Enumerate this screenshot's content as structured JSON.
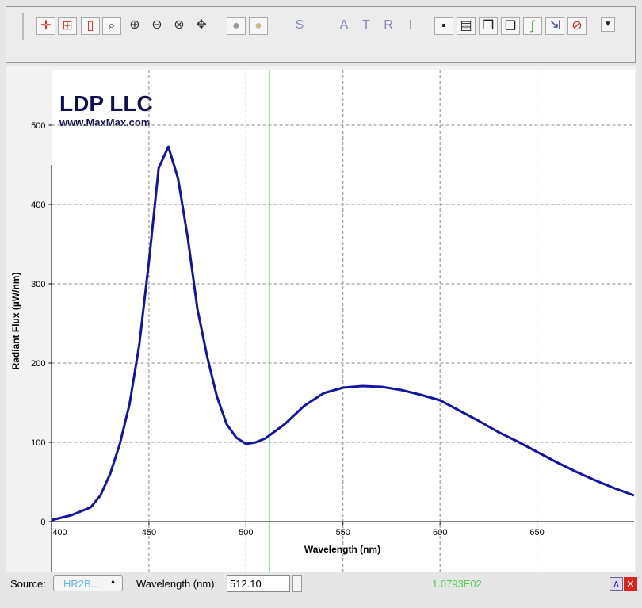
{
  "toolbar": {
    "letters": [
      "S",
      "A",
      "T",
      "R",
      "I"
    ]
  },
  "chart_data": {
    "type": "line",
    "logo": {
      "title": "LDP LLC",
      "subtitle": "www.MaxMax.com"
    },
    "x_label": "Wavelength (nm)",
    "y_label": "Radiant Flux (µW/nm)",
    "x": [
      400,
      410,
      420,
      425,
      430,
      435,
      440,
      445,
      450,
      455,
      460,
      465,
      470,
      475,
      480,
      485,
      490,
      495,
      500,
      505,
      510,
      520,
      530,
      540,
      550,
      560,
      570,
      580,
      590,
      600,
      610,
      620,
      630,
      640,
      650,
      660,
      670,
      680,
      690,
      700
    ],
    "values": [
      2,
      8,
      18,
      33,
      60,
      98,
      148,
      223,
      328,
      446,
      473,
      433,
      358,
      268,
      208,
      158,
      123,
      106,
      98,
      100,
      105,
      123,
      146,
      162,
      169,
      171,
      170,
      166,
      160,
      153,
      140,
      127,
      113,
      101,
      88,
      75,
      63,
      52,
      42,
      33
    ],
    "color": "#1414a0",
    "xlim": [
      400,
      700
    ],
    "ylim": [
      0,
      570
    ],
    "xticks": [
      400,
      450,
      500,
      550,
      600,
      650
    ],
    "yticks": [
      0,
      100,
      200,
      300,
      400,
      500
    ],
    "grid": true,
    "cursor_x": 512.1,
    "cursor_color": "#22cc22"
  },
  "status": {
    "source_label": "Source:",
    "source_value": "HR2B...",
    "wavelength_label": "Wavelength (nm):",
    "wavelength_value": "512.10",
    "reading": "1.0793E02"
  }
}
